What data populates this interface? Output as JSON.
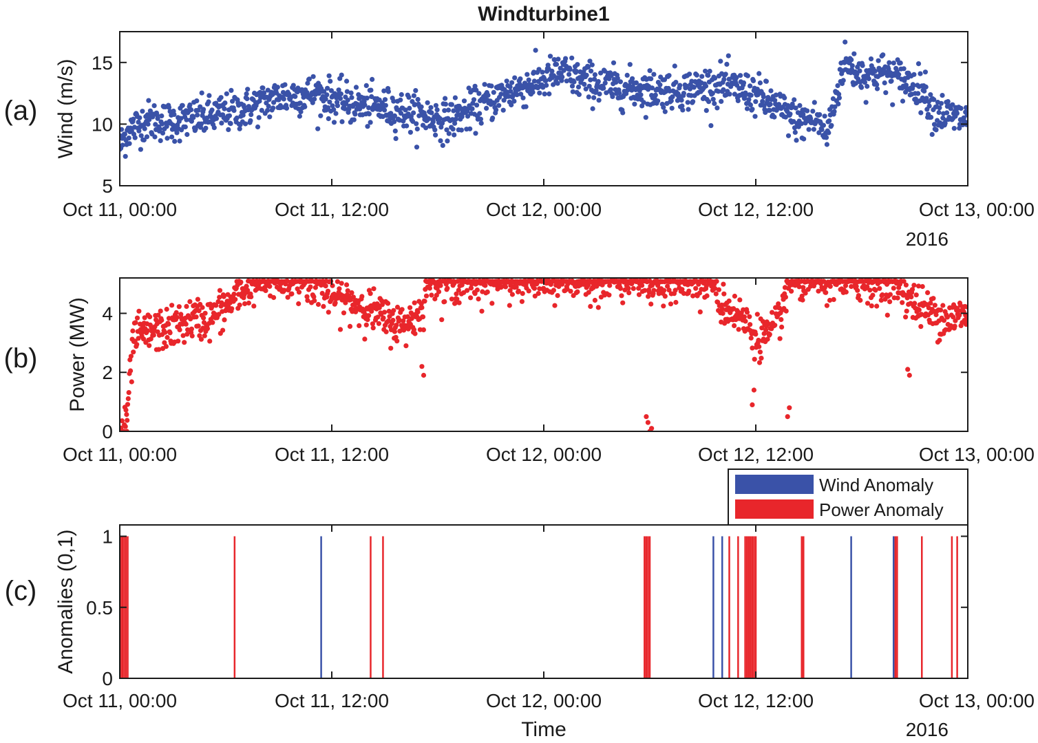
{
  "figure": {
    "title": "Windturbine1",
    "year_label": "2016",
    "time_ticks": [
      "Oct 11, 00:00",
      "Oct 11, 12:00",
      "Oct 12, 00:00",
      "Oct 12, 12:00",
      "Oct 13, 00:00"
    ],
    "colors": {
      "wind": "#3a52a8",
      "power": "#e8262b",
      "axis": "#1a1a1a"
    }
  },
  "chart_data": [
    {
      "id": "a",
      "panel_label": "(a)",
      "type": "scatter",
      "title": "Windturbine1",
      "xlabel": "",
      "ylabel": "Wind (m/s)",
      "x_unit": "hours since Oct 11, 00:00",
      "xlim": [
        0,
        48
      ],
      "ylim": [
        5,
        17.5
      ],
      "yticks": [
        5,
        10,
        15
      ],
      "ytick_labels": [
        "5",
        "10",
        "15"
      ],
      "xticks": [
        0,
        12,
        24,
        36,
        48
      ],
      "xtick_labels": [
        "Oct 11, 00:00",
        "Oct 11, 12:00",
        "Oct 12, 00:00",
        "Oct 12, 12:00",
        "Oct 13, 00:00"
      ],
      "x_secondary_label": "2016",
      "series": [
        {
          "name": "Wind",
          "color": "#3a52a8",
          "trend": [
            [
              0,
              8.2
            ],
            [
              0.5,
              9.5
            ],
            [
              1.5,
              10.3
            ],
            [
              3,
              10.2
            ],
            [
              5,
              10.6
            ],
            [
              7,
              11.2
            ],
            [
              9,
              12.2
            ],
            [
              11,
              12.5
            ],
            [
              13,
              11.6
            ],
            [
              15,
              11.3
            ],
            [
              17,
              10.8
            ],
            [
              18.5,
              10.3
            ],
            [
              20,
              11.2
            ],
            [
              22,
              12.6
            ],
            [
              24,
              13.6
            ],
            [
              25,
              14.2
            ],
            [
              26,
              13.6
            ],
            [
              28,
              13.0
            ],
            [
              30,
              12.8
            ],
            [
              32,
              12.8
            ],
            [
              34,
              13.2
            ],
            [
              36,
              12.4
            ],
            [
              37.5,
              11.0
            ],
            [
              38.5,
              10.2
            ],
            [
              39.5,
              10.4
            ],
            [
              40,
              9.0
            ],
            [
              41,
              15.0
            ],
            [
              42,
              14.0
            ],
            [
              43,
              14.2
            ],
            [
              44,
              13.8
            ],
            [
              45.5,
              12.8
            ],
            [
              46,
              11.2
            ],
            [
              47,
              10.6
            ],
            [
              48,
              10.4
            ]
          ],
          "noise_sd": 0.8,
          "n_points": 1500
        }
      ]
    },
    {
      "id": "b",
      "panel_label": "(b)",
      "type": "scatter",
      "xlabel": "",
      "ylabel": "Power (MW)",
      "x_unit": "hours since Oct 11, 00:00",
      "xlim": [
        0,
        48
      ],
      "ylim": [
        0,
        5.2
      ],
      "yticks": [
        0,
        2,
        4
      ],
      "ytick_labels": [
        "0",
        "2",
        "4"
      ],
      "xticks": [
        0,
        12,
        24,
        36,
        48
      ],
      "xtick_labels": [
        "Oct 11, 00:00",
        "Oct 11, 12:00",
        "Oct 12, 00:00",
        "Oct 12, 12:00",
        "Oct 13, 00:00"
      ],
      "series": [
        {
          "name": "Power",
          "color": "#e8262b",
          "trend": [
            [
              0,
              0.0
            ],
            [
              0.3,
              0.0
            ],
            [
              0.5,
              1.2
            ],
            [
              0.8,
              3.2
            ],
            [
              2,
              3.4
            ],
            [
              3,
              3.5
            ],
            [
              4,
              3.8
            ],
            [
              5,
              3.8
            ],
            [
              6,
              4.2
            ],
            [
              7,
              4.8
            ],
            [
              8,
              5.1
            ],
            [
              10,
              5.1
            ],
            [
              11,
              5.1
            ],
            [
              12,
              4.6
            ],
            [
              13,
              4.4
            ],
            [
              14,
              4.2
            ],
            [
              15,
              3.8
            ],
            [
              16,
              3.6
            ],
            [
              17,
              4.0
            ],
            [
              17.5,
              5.1
            ],
            [
              24,
              5.1
            ],
            [
              28,
              5.1
            ],
            [
              32,
              5.1
            ],
            [
              33.5,
              5.1
            ],
            [
              34,
              4.3
            ],
            [
              35,
              4.0
            ],
            [
              36,
              3.2
            ],
            [
              37,
              3.3
            ],
            [
              38,
              5.1
            ],
            [
              44,
              5.1
            ],
            [
              45,
              4.3
            ],
            [
              46,
              4.0
            ],
            [
              47,
              3.8
            ],
            [
              48,
              4.0
            ]
          ],
          "noise_sd": 0.35,
          "cap": 5.1,
          "n_points": 1500,
          "extra_points": [
            [
              29.8,
              0.5
            ],
            [
              29.9,
              0.3
            ],
            [
              30.0,
              0.0
            ],
            [
              30.1,
              0.1
            ],
            [
              0.1,
              0.0
            ],
            [
              0.2,
              0.0
            ],
            [
              0.4,
              0.0
            ],
            [
              35.8,
              0.9
            ],
            [
              35.9,
              1.4
            ],
            [
              37.8,
              0.5
            ],
            [
              37.9,
              0.8
            ],
            [
              17.2,
              1.9
            ],
            [
              17.1,
              2.2
            ],
            [
              44.6,
              2.1
            ],
            [
              44.7,
              1.9
            ]
          ]
        }
      ]
    },
    {
      "id": "c",
      "panel_label": "(c)",
      "type": "line",
      "xlabel": "Time",
      "ylabel": "Anomalies (0,1)",
      "x_unit": "hours since Oct 11, 00:00",
      "xlim": [
        0,
        48
      ],
      "ylim": [
        0,
        1.08
      ],
      "yticks": [
        0,
        0.5,
        1
      ],
      "ytick_labels": [
        "0",
        "0.5",
        "1"
      ],
      "xticks": [
        0,
        12,
        24,
        36,
        48
      ],
      "xtick_labels": [
        "Oct 11, 00:00",
        "Oct 11, 12:00",
        "Oct 12, 00:00",
        "Oct 12, 12:00",
        "Oct 13, 00:00"
      ],
      "x_secondary_label": "2016",
      "legend": {
        "position": "top-right",
        "entries": [
          "Wind Anomaly",
          "Power Anomaly"
        ]
      },
      "series": [
        {
          "name": "Wind Anomaly",
          "color": "#3a52a8",
          "spikes_x": [
            11.4,
            33.6,
            34.1,
            41.4,
            43.8
          ]
        },
        {
          "name": "Power Anomaly",
          "color": "#e8262b",
          "spikes_x": [
            0.05,
            0.15,
            0.25,
            0.35,
            0.45,
            6.5,
            14.2,
            14.9,
            29.7,
            29.8,
            29.9,
            30.0,
            34.5,
            35.0,
            35.4,
            35.5,
            35.6,
            35.7,
            35.8,
            35.9,
            36.0,
            38.6,
            38.7,
            43.9,
            44.0,
            45.4,
            47.1,
            47.4
          ]
        }
      ]
    }
  ]
}
